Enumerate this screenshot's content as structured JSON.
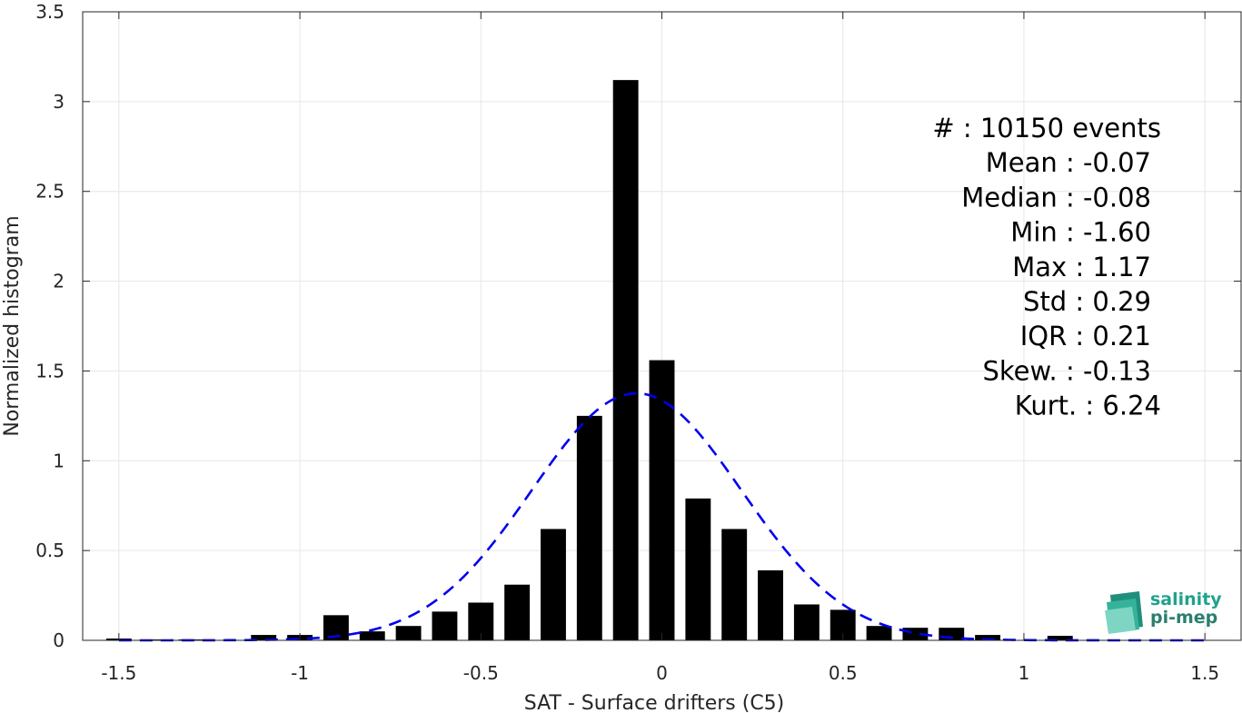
{
  "chart_data": {
    "type": "bar",
    "xlabel": "SAT - Surface drifters (C5)",
    "ylabel": "Normalized histogram",
    "xlim": [
      -1.6,
      1.6
    ],
    "ylim": [
      0,
      3.5
    ],
    "x_ticks": [
      "-1.5",
      "-1",
      "-0.5",
      "0",
      "0.5",
      "1",
      "1.5"
    ],
    "y_ticks": [
      "0",
      "0.5",
      "1",
      "1.5",
      "2",
      "2.5",
      "3",
      "3.5"
    ],
    "grid": true,
    "bar_color": "#000000",
    "fit_color": "#0000ee",
    "bins": [
      -1.5,
      -1.4,
      -1.3,
      -1.2,
      -1.1,
      -1.0,
      -0.9,
      -0.8,
      -0.7,
      -0.6,
      -0.5,
      -0.4,
      -0.3,
      -0.2,
      -0.1,
      0.0,
      0.1,
      0.2,
      0.3,
      0.4,
      0.5,
      0.6,
      0.7,
      0.8,
      0.9,
      1.0,
      1.1,
      1.2,
      1.3,
      1.4,
      1.5
    ],
    "values": [
      0.01,
      0.005,
      0.005,
      0.0,
      0.03,
      0.03,
      0.14,
      0.05,
      0.08,
      0.16,
      0.21,
      0.31,
      0.62,
      1.25,
      3.12,
      1.56,
      0.79,
      0.62,
      0.39,
      0.2,
      0.17,
      0.08,
      0.07,
      0.07,
      0.03,
      0.0,
      0.025,
      0.0,
      0.0,
      0.0,
      0.0
    ],
    "gaussian_fit": {
      "style": "dashed",
      "mean": -0.07,
      "std": 0.29
    },
    "stats": [
      "#  : 10150 events",
      "Mean : -0.07",
      "Median : -0.08",
      "Min : -1.60",
      "Max : 1.17",
      "Std : 0.29",
      "IQR : 0.21",
      "Skew. : -0.13",
      "Kurt. : 6.24"
    ]
  },
  "logo": {
    "line1": "salinity",
    "line2": "pi-mep"
  }
}
